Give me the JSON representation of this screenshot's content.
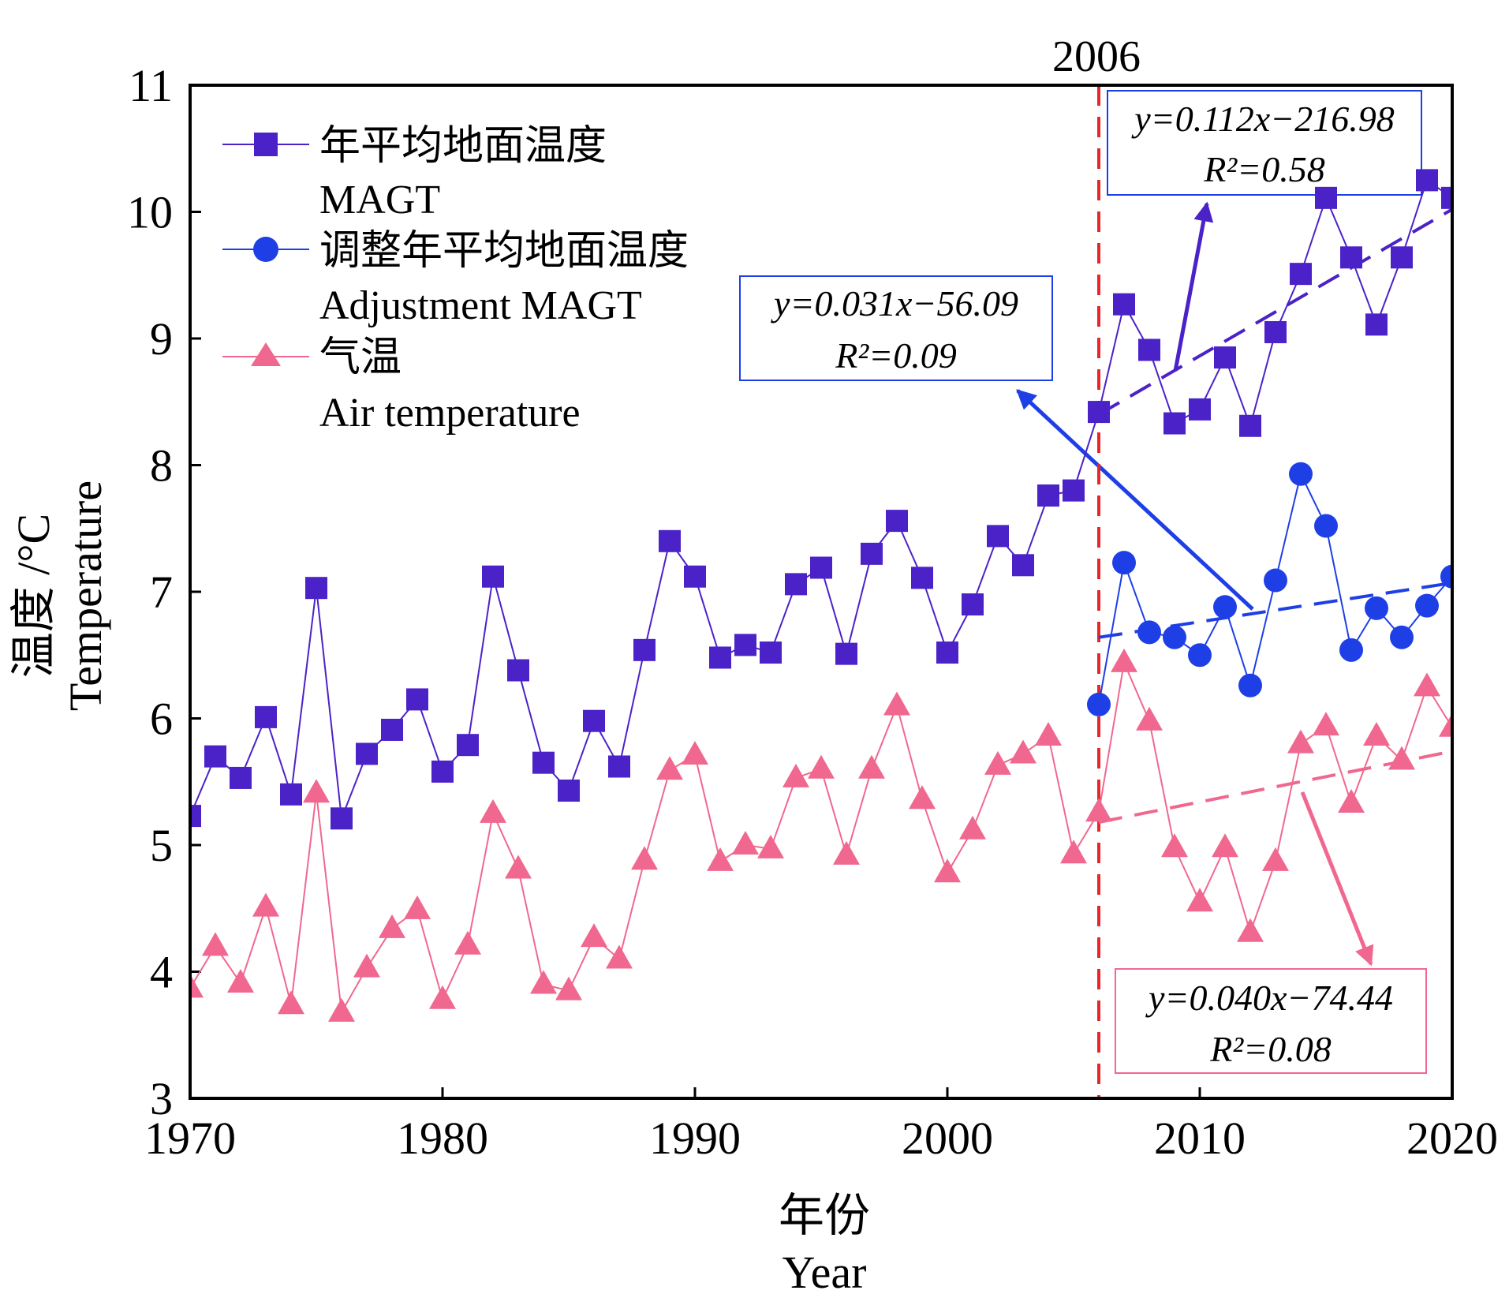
{
  "chart_data": {
    "type": "line",
    "xlabel_cn": "年份",
    "xlabel_en": "Year",
    "ylabel_cn": "温度 /°C",
    "ylabel_en": "Temperature",
    "xlim": [
      1970,
      2020
    ],
    "ylim": [
      3,
      11
    ],
    "xticks": [
      1970,
      1980,
      1990,
      2000,
      2010,
      2020
    ],
    "yticks": [
      3,
      4,
      5,
      6,
      7,
      8,
      9,
      10,
      11
    ],
    "grid": false,
    "legend_position": "top-left",
    "vline": {
      "x": 2006,
      "label": "2006",
      "color": "#e8262a"
    },
    "series": [
      {
        "id": "magt",
        "name_cn": "年平均地面温度",
        "name_en": "MAGT",
        "marker": "square",
        "color": "#4b22c8",
        "x": [
          1970,
          1971,
          1972,
          1973,
          1974,
          1975,
          1976,
          1977,
          1978,
          1979,
          1980,
          1981,
          1982,
          1983,
          1984,
          1985,
          1986,
          1987,
          1988,
          1989,
          1990,
          1991,
          1992,
          1993,
          1994,
          1995,
          1996,
          1997,
          1998,
          1999,
          2000,
          2001,
          2002,
          2003,
          2004,
          2005,
          2006,
          2007,
          2008,
          2009,
          2010,
          2011,
          2012,
          2013,
          2014,
          2015,
          2016,
          2017,
          2018,
          2019,
          2020
        ],
        "y": [
          5.23,
          5.7,
          5.53,
          6.01,
          5.4,
          7.03,
          5.21,
          5.72,
          5.91,
          6.15,
          5.58,
          5.79,
          7.12,
          6.38,
          5.65,
          5.43,
          5.98,
          5.62,
          6.54,
          7.4,
          7.12,
          6.48,
          6.58,
          6.52,
          7.06,
          7.19,
          6.51,
          7.3,
          7.56,
          7.11,
          6.52,
          6.9,
          7.44,
          7.21,
          7.76,
          7.8,
          8.42,
          9.27,
          8.91,
          8.33,
          8.44,
          8.85,
          8.31,
          9.05,
          9.51,
          10.11,
          9.64,
          9.11,
          9.64,
          10.25,
          10.11
        ]
      },
      {
        "id": "adjusted",
        "name_cn": "调整年平均地面温度",
        "name_en": "Adjustment MAGT",
        "marker": "circle",
        "color": "#1f3fe6",
        "x": [
          2006,
          2007,
          2008,
          2009,
          2010,
          2011,
          2012,
          2013,
          2014,
          2015,
          2016,
          2017,
          2018,
          2019,
          2020
        ],
        "y": [
          6.11,
          7.23,
          6.68,
          6.64,
          6.5,
          6.88,
          6.26,
          7.09,
          7.93,
          7.52,
          6.54,
          6.87,
          6.64,
          6.89,
          7.12
        ]
      },
      {
        "id": "air",
        "name_cn": "气温",
        "name_en": "Air temperature",
        "marker": "triangle",
        "color": "#f0688f",
        "x": [
          1970,
          1971,
          1972,
          1973,
          1974,
          1975,
          1976,
          1977,
          1978,
          1979,
          1980,
          1981,
          1982,
          1983,
          1984,
          1985,
          1986,
          1987,
          1988,
          1989,
          1990,
          1991,
          1992,
          1993,
          1994,
          1995,
          1996,
          1997,
          1998,
          1999,
          2000,
          2001,
          2002,
          2003,
          2004,
          2005,
          2006,
          2007,
          2008,
          2009,
          2010,
          2011,
          2012,
          2013,
          2014,
          2015,
          2016,
          2017,
          2018,
          2019,
          2020
        ],
        "y": [
          3.87,
          4.2,
          3.91,
          4.51,
          3.74,
          5.41,
          3.68,
          4.03,
          4.34,
          4.49,
          3.78,
          4.21,
          5.25,
          4.81,
          3.9,
          3.85,
          4.27,
          4.1,
          4.88,
          5.59,
          5.71,
          4.87,
          5.0,
          4.97,
          5.53,
          5.6,
          4.92,
          5.6,
          6.1,
          5.36,
          4.78,
          5.12,
          5.63,
          5.72,
          5.86,
          4.93,
          5.26,
          6.44,
          5.98,
          4.98,
          4.55,
          4.98,
          4.31,
          4.87,
          5.8,
          5.94,
          5.33,
          5.86,
          5.67,
          6.25,
          5.93
        ]
      }
    ],
    "trendlines": [
      {
        "series": "magt",
        "x": [
          2006,
          2020
        ],
        "y": [
          8.4,
          10.02
        ],
        "style": "dashed",
        "color": "#4b22c8"
      },
      {
        "series": "adjusted",
        "x": [
          2006,
          2020
        ],
        "y": [
          6.64,
          7.07
        ],
        "style": "dashed",
        "color": "#1f3fe6"
      },
      {
        "series": "air",
        "x": [
          2006,
          2020
        ],
        "y": [
          5.18,
          5.74
        ],
        "style": "dashed",
        "color": "#f0688f"
      }
    ],
    "annotations": [
      {
        "series": "magt",
        "equation": "y=0.112x−216.98",
        "r2": "R²=0.58",
        "box_color": "#1f3fe6",
        "placement": "top-right"
      },
      {
        "series": "adjusted",
        "equation": "y=0.031x−56.09",
        "r2": "R²=0.09",
        "box_color": "#1f3fe6",
        "placement": "upper-middle"
      },
      {
        "series": "air",
        "equation": "y=0.040x−74.44",
        "r2": "R²=0.08",
        "box_color": "#f0688f",
        "placement": "bottom-right"
      }
    ]
  }
}
